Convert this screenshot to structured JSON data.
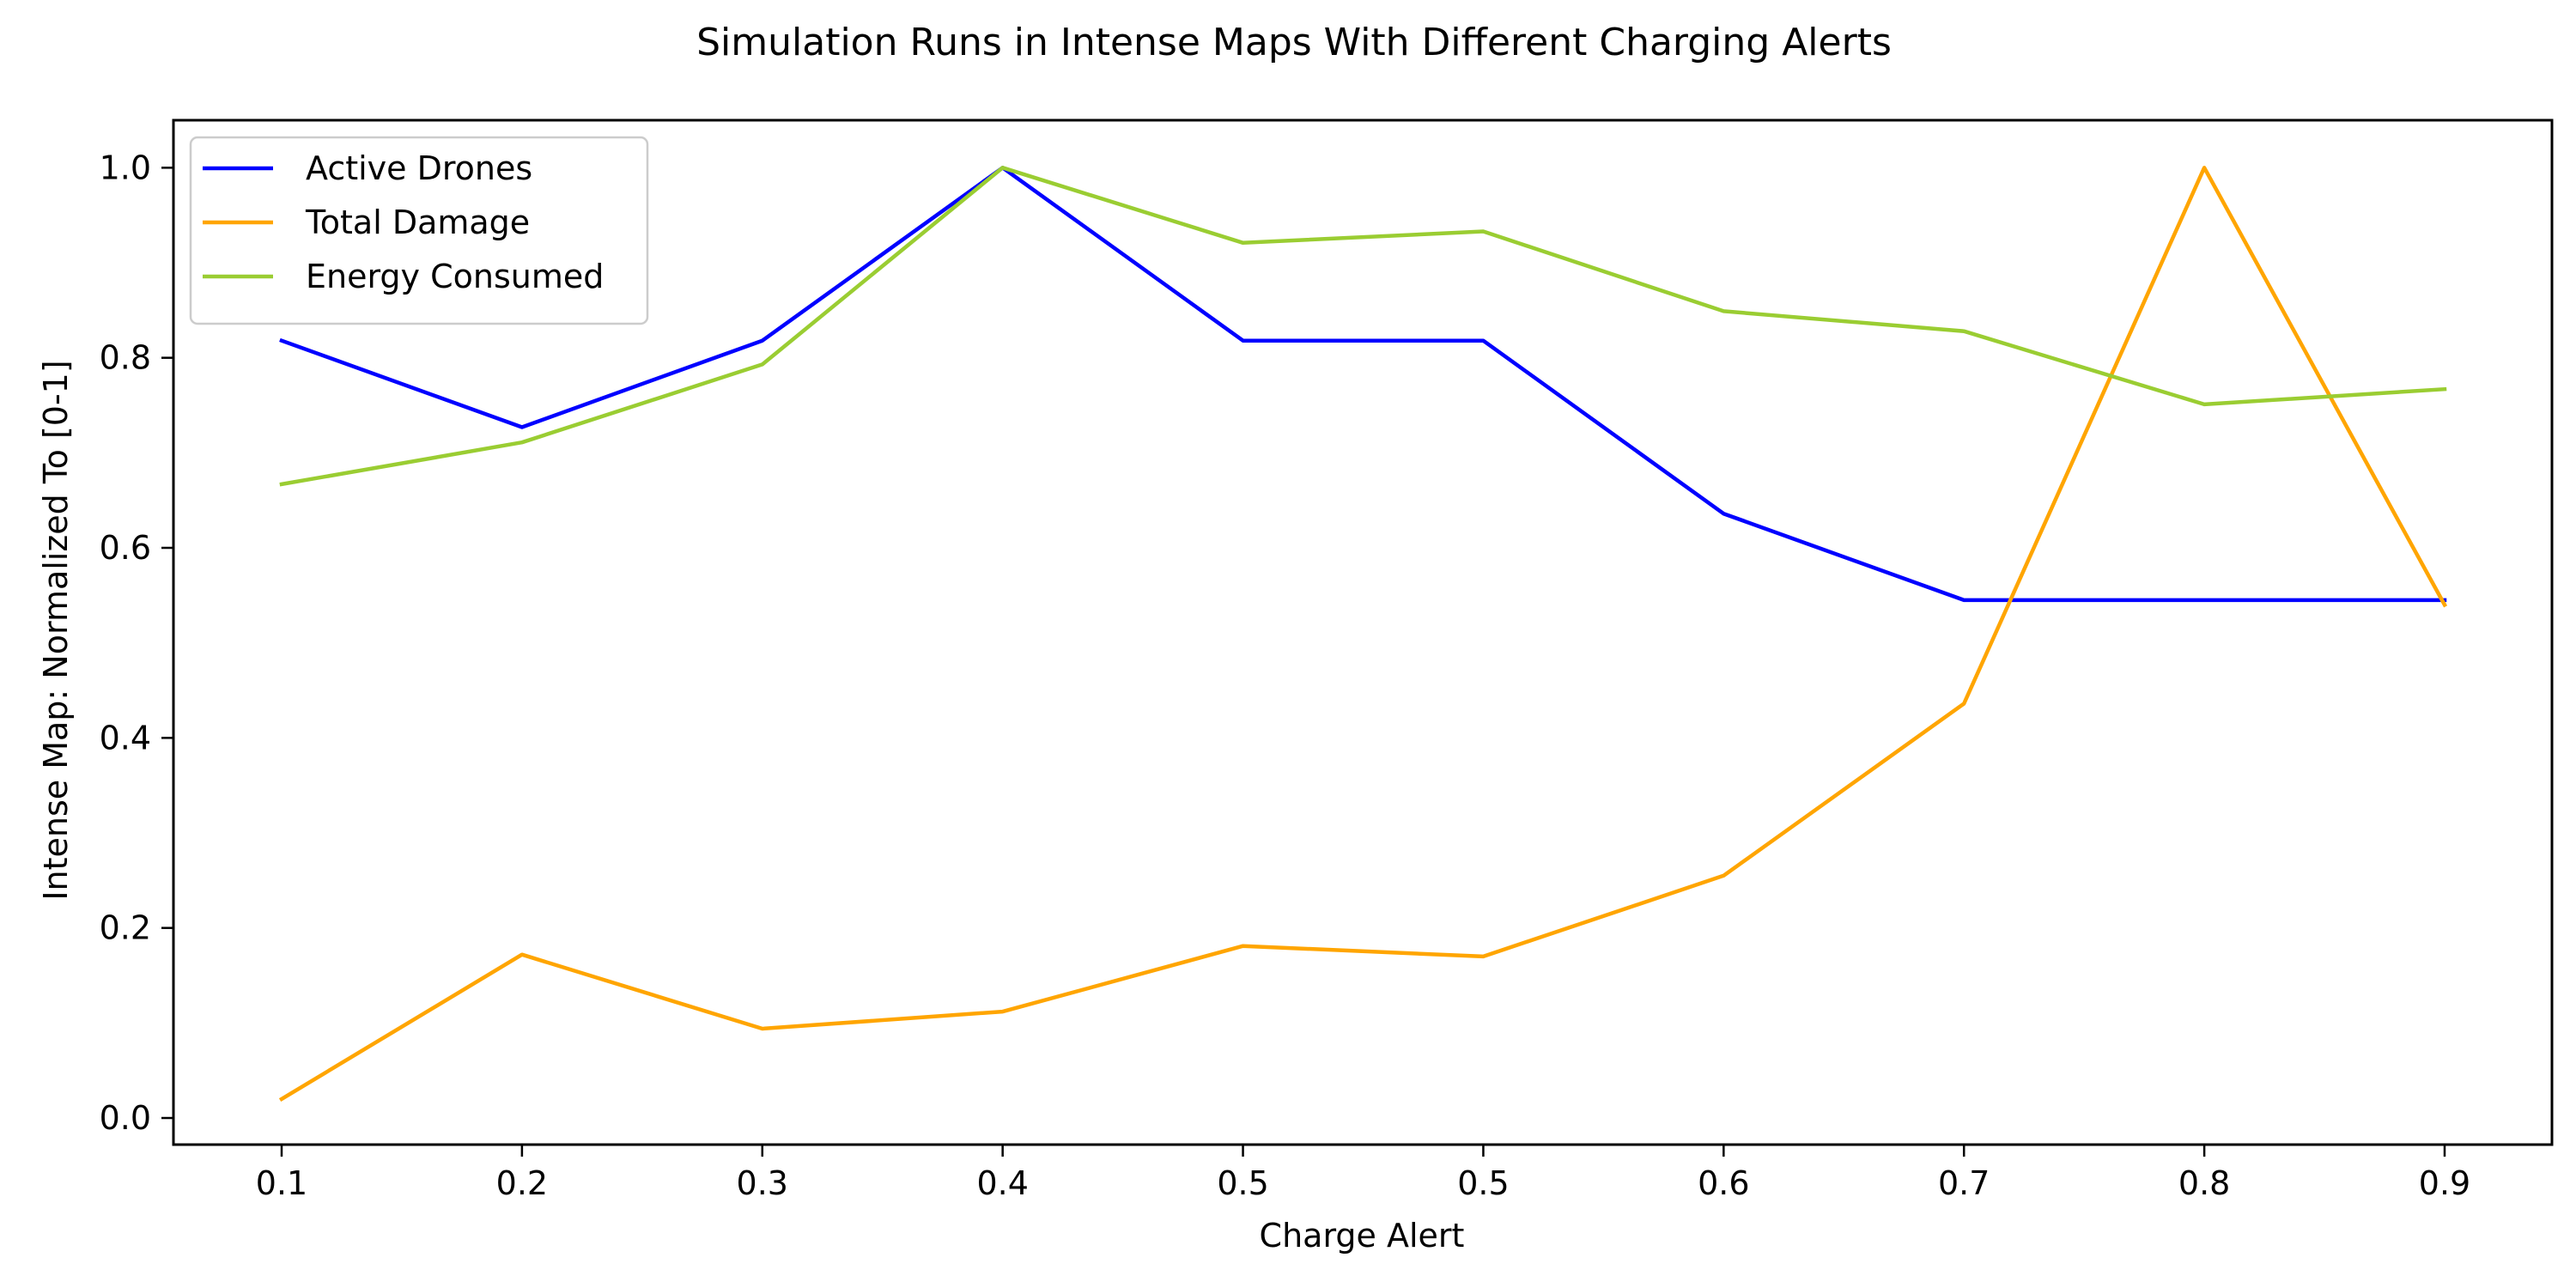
{
  "chart_data": {
    "type": "line",
    "title": "Simulation Runs in Intense Maps With Different Charging Alerts",
    "xlabel": "Charge Alert",
    "ylabel": "Intense Map: Normalized To [0-1]",
    "categories": [
      "0.1",
      "0.2",
      "0.3",
      "0.4",
      "0.5",
      "0.5",
      "0.6",
      "0.7",
      "0.8",
      "0.9"
    ],
    "y_ticks": [
      "0.0",
      "0.2",
      "0.4",
      "0.6",
      "0.8",
      "1.0"
    ],
    "ylim": [
      -0.028,
      1.05
    ],
    "grid": false,
    "legend_position": "upper-left",
    "series": [
      {
        "name": "Active Drones",
        "color": "#0000ff",
        "values": [
          0.818,
          0.727,
          0.818,
          1.0,
          0.818,
          0.818,
          0.636,
          0.545,
          0.545,
          0.545
        ]
      },
      {
        "name": "Total Damage",
        "color": "#ffa500",
        "values": [
          0.02,
          0.172,
          0.094,
          0.112,
          0.181,
          0.17,
          0.255,
          0.436,
          1.0,
          0.54
        ]
      },
      {
        "name": "Energy Consumed",
        "color": "#9acd32",
        "values": [
          0.667,
          0.711,
          0.793,
          1.0,
          0.921,
          0.933,
          0.849,
          0.828,
          0.751,
          0.767
        ]
      }
    ]
  }
}
